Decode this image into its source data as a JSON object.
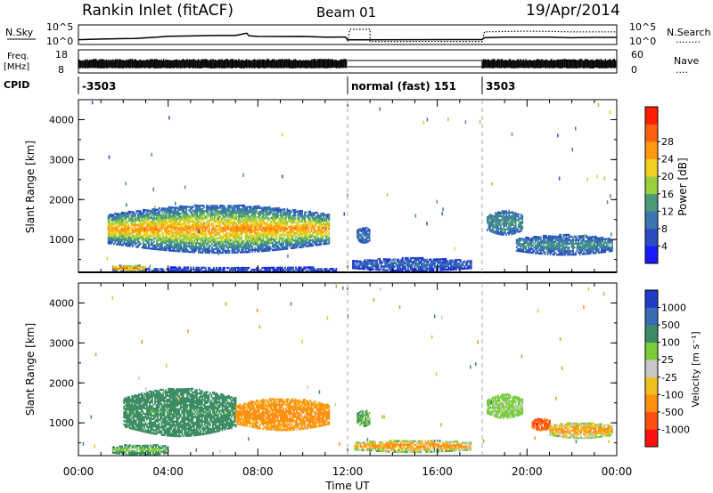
{
  "header": {
    "title": "Rankin Inlet (fitACF)",
    "beam": "Beam 01",
    "date": "19/Apr/2014"
  },
  "status_panels": {
    "nsky_label": "N.Sky",
    "nsearch_label": "N.Search",
    "nsearch_legend": "........",
    "count_ticks": [
      "10^5",
      "10^0"
    ],
    "freq_label": "Freq.",
    "freq_unit": "[MHz]",
    "freq_ticks": [
      "18",
      "8"
    ],
    "nave_label": "Nave",
    "nave_legend": "....",
    "nave_ticks": [
      "60",
      "0"
    ],
    "cpid_label": "CPID",
    "cpid_segments": [
      {
        "start": 0,
        "end": 12,
        "text": "-3503"
      },
      {
        "start": 12,
        "end": 18,
        "text": "normal (fast) 151"
      },
      {
        "start": 18,
        "end": 24,
        "text": "3503"
      }
    ],
    "nsky_profile": [
      [
        0,
        1.0
      ],
      [
        1,
        1.1
      ],
      [
        2,
        1.2
      ],
      [
        2.5,
        1.4
      ],
      [
        3,
        1.6
      ],
      [
        3.5,
        1.8
      ],
      [
        4,
        2.0
      ],
      [
        5,
        2.1
      ],
      [
        6,
        2.2
      ],
      [
        7,
        2.2
      ],
      [
        7.5,
        3.0
      ],
      [
        7.6,
        2.2
      ],
      [
        8,
        2.0
      ],
      [
        9,
        1.9
      ],
      [
        10,
        1.9
      ],
      [
        11,
        1.8
      ],
      [
        11.9,
        1.8
      ],
      [
        12,
        1.0
      ],
      [
        18,
        1.0
      ],
      [
        18.1,
        1.6
      ],
      [
        19,
        1.7
      ],
      [
        20,
        1.8
      ],
      [
        21,
        1.7
      ],
      [
        22,
        1.6
      ],
      [
        23,
        1.6
      ],
      [
        24,
        1.6
      ]
    ],
    "nsearch_profile": [
      [
        12,
        0.4
      ],
      [
        12.1,
        4.2
      ],
      [
        13,
        4.2
      ],
      [
        13,
        0.4
      ],
      [
        18,
        0.4
      ],
      [
        18.1,
        3.4
      ],
      [
        20,
        3.6
      ],
      [
        22,
        3.4
      ],
      [
        24,
        3.4
      ]
    ]
  },
  "chart_data": [
    {
      "type": "heatmap",
      "parameter": "Power",
      "ylabel": "Slant Range [km]",
      "xlabel": "",
      "x_range_hours": [
        0,
        24
      ],
      "ylim": [
        180,
        4500
      ],
      "yticks": [
        1000,
        2000,
        3000,
        4000
      ],
      "colorbar_label": "Power [dB]",
      "colorbar_ticks": [
        "4",
        "8",
        "12",
        "16",
        "20",
        "24",
        "28"
      ],
      "colorbar_colors": [
        "#1a1aff",
        "#2a4cc0",
        "#3a76b0",
        "#4a9a78",
        "#9ad040",
        "#f0d020",
        "#ff9a10",
        "#ff6010",
        "#ff2000"
      ],
      "colorbar_range": [
        0,
        32
      ],
      "echo_regions": [
        {
          "t0": 1.3,
          "t1": 11.2,
          "r0": 650,
          "r1": 1850,
          "v_core": 24,
          "v_edge": 6
        },
        {
          "t0": 1.5,
          "t1": 3.0,
          "r0": 180,
          "r1": 350,
          "v_core": 28,
          "v_edge": 10
        },
        {
          "t0": 3.0,
          "t1": 11.5,
          "r0": 180,
          "r1": 300,
          "v_core": 6,
          "v_edge": 4
        },
        {
          "t0": 12.2,
          "t1": 17.5,
          "r0": 200,
          "r1": 520,
          "v_core": 8,
          "v_edge": 4
        },
        {
          "t0": 12.4,
          "t1": 13.0,
          "r0": 900,
          "r1": 1300,
          "v_core": 10,
          "v_edge": 6
        },
        {
          "t0": 18.2,
          "t1": 19.8,
          "r0": 1100,
          "r1": 1700,
          "v_core": 12,
          "v_edge": 8
        },
        {
          "t0": 19.5,
          "t1": 23.8,
          "r0": 600,
          "r1": 1100,
          "v_core": 12,
          "v_edge": 6
        }
      ]
    },
    {
      "type": "heatmap",
      "parameter": "Velocity",
      "ylabel": "Slant Range [km]",
      "xlabel": "Time UT",
      "x_range_hours": [
        0,
        24
      ],
      "ylim": [
        180,
        4500
      ],
      "yticks": [
        1000,
        2000,
        3000,
        4000
      ],
      "xticks": [
        "00:00",
        "04:00",
        "08:00",
        "12:00",
        "16:00",
        "20:00",
        "00:00"
      ],
      "colorbar_label": "Velocity [m s⁻¹]",
      "colorbar_ticks": [
        "1000",
        "500",
        "100",
        "25",
        "-25",
        "-100",
        "-500",
        "-1000"
      ],
      "colorbar_colors": [
        "#1e3cc8",
        "#3a6ab4",
        "#3c8c64",
        "#7acc3c",
        "#c8c8c8",
        "#f0c020",
        "#ff9010",
        "#ff5010",
        "#ff1010"
      ],
      "echo_regions": [
        {
          "t0": 2.0,
          "t1": 7.0,
          "r0": 650,
          "r1": 1850,
          "v_core": 150,
          "v_edge": 300
        },
        {
          "t0": 7.0,
          "t1": 11.2,
          "r0": 800,
          "r1": 1600,
          "v_core": -250,
          "v_edge": -120
        },
        {
          "t0": 1.5,
          "t1": 4.0,
          "r0": 180,
          "r1": 450,
          "v_core": 40,
          "v_edge": 200
        },
        {
          "t0": 12.3,
          "t1": 17.5,
          "r0": 250,
          "r1": 550,
          "v_core": -200,
          "v_edge": 60
        },
        {
          "t0": 12.4,
          "t1": 13.0,
          "r0": 900,
          "r1": 1300,
          "v_core": 80,
          "v_edge": 120
        },
        {
          "t0": 18.2,
          "t1": 19.8,
          "r0": 1100,
          "r1": 1700,
          "v_core": 40,
          "v_edge": 60
        },
        {
          "t0": 20.2,
          "t1": 21.0,
          "r0": 800,
          "r1": 1100,
          "v_core": -800,
          "v_edge": -400
        },
        {
          "t0": 21.0,
          "t1": 23.8,
          "r0": 600,
          "r1": 1000,
          "v_core": -150,
          "v_edge": 30
        }
      ]
    }
  ]
}
